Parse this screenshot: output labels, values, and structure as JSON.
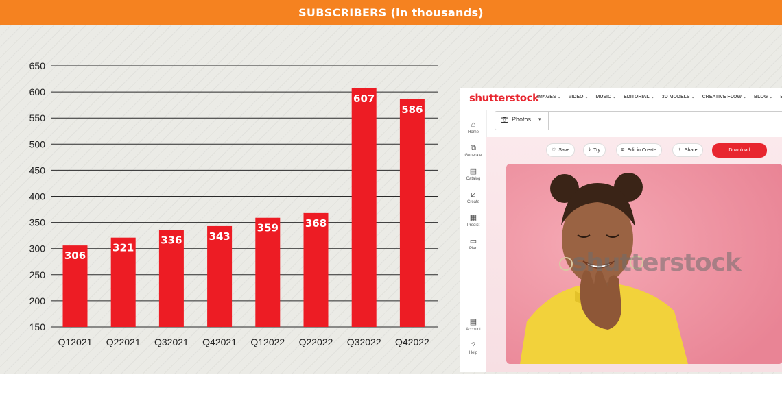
{
  "header": {
    "title": "SUBSCRIBERS (in thousands)"
  },
  "chart_data": {
    "type": "bar",
    "title": "SUBSCRIBERS (in thousands)",
    "categories": [
      "Q12021",
      "Q22021",
      "Q32021",
      "Q42021",
      "Q12022",
      "Q22022",
      "Q32022",
      "Q42022"
    ],
    "values": [
      306,
      321,
      336,
      343,
      359,
      368,
      607,
      586
    ],
    "data_labels": [
      "306",
      "321",
      "336",
      "343",
      "359",
      "368",
      "607",
      "586"
    ],
    "yticks": [
      150,
      200,
      250,
      300,
      350,
      400,
      450,
      500,
      550,
      600,
      650
    ],
    "ylim": [
      150,
      650
    ],
    "xlabel": "",
    "ylabel": "",
    "grid": true,
    "legend": "none",
    "colors": {
      "bar": "#ed1c24",
      "header": "#f58220"
    }
  },
  "screenshot": {
    "logo": "shutterstock",
    "nav": [
      "IMAGES",
      "VIDEO",
      "MUSIC",
      "EDITORIAL",
      "3D MODELS",
      "CREATIVE FLOW",
      "BLOG",
      "ENTE"
    ],
    "sidebar": [
      "Home",
      "Generate",
      "Catalog",
      "Create",
      "Predict",
      "Plan"
    ],
    "sidebar_bottom": [
      "Account",
      "Help"
    ],
    "media_type": "Photos",
    "actions": [
      "Save",
      "Try",
      "Edit in Create",
      "Share"
    ],
    "download": "Download",
    "watermark": "shutterstock"
  }
}
